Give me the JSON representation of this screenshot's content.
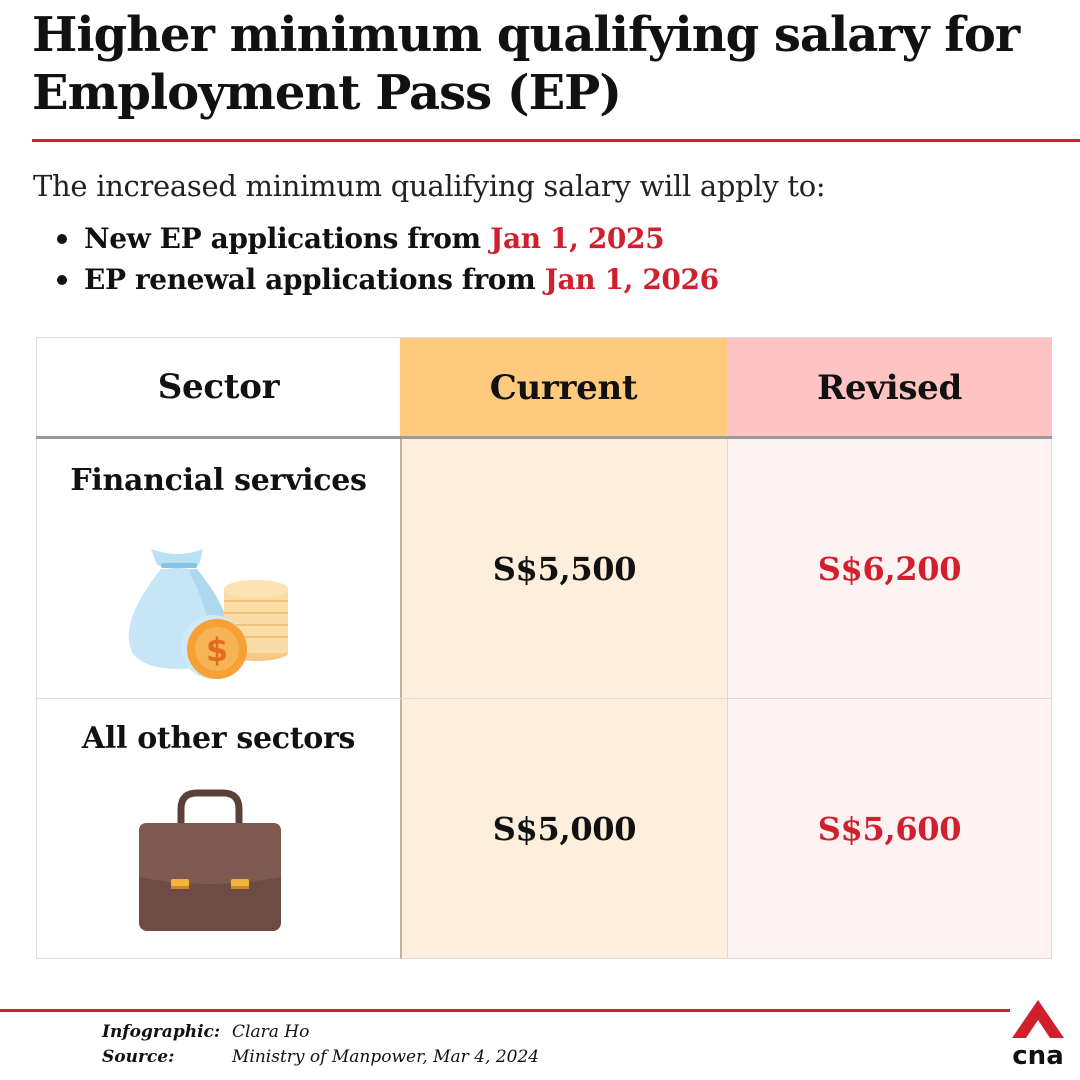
{
  "title": "Higher minimum qualifying salary for Employment Pass (EP)",
  "intro": "The increased minimum qualifying salary will apply to:",
  "bullets": [
    {
      "text": "New EP applications from ",
      "date": "Jan 1, 2025"
    },
    {
      "text": "EP renewal applications from ",
      "date": "Jan 1, 2026"
    }
  ],
  "table": {
    "headers": [
      "Sector",
      "Current",
      "Revised"
    ],
    "rows": [
      {
        "sector": "Financial services",
        "icon": "money-bag-coins-icon",
        "current": "S$5,500",
        "revised": "S$6,200"
      },
      {
        "sector": "All other sectors",
        "icon": "briefcase-icon",
        "current": "S$5,000",
        "revised": "S$5,600"
      }
    ]
  },
  "credits": {
    "infographic_label": "Infographic:",
    "infographic_value": "Clara Ho",
    "source_label": "Source:",
    "source_value": "Ministry of Manpower, Mar 4, 2024"
  },
  "logo": {
    "text": "cna",
    "icon": "cna-logo-icon"
  },
  "colors": {
    "accent_red": "#d0202d",
    "current_header_bg": "#fecb7e",
    "current_body_bg": "#feefdc",
    "revised_header_bg": "#fec3c3",
    "revised_body_bg": "#fff2f3"
  }
}
